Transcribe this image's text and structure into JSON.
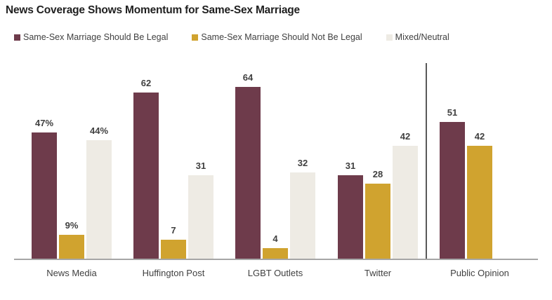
{
  "title": "News Coverage Shows Momentum for Same-Sex Marriage",
  "colors": {
    "legal_bar": "#6E3B4B",
    "not_legal_bar": "#D0A32F",
    "mixed_bar": "#EEEBE4",
    "axis_line": "#A6A6A6",
    "divider_line": "#595959",
    "label_text": "#404040",
    "title_text": "#1F1F1F"
  },
  "legend": {
    "items": [
      {
        "label": "Same-Sex Marriage Should Be Legal",
        "color": "#6E3B4B"
      },
      {
        "label": "Same-Sex Marriage Should Not Be Legal",
        "color": "#D0A32F"
      },
      {
        "label": "Mixed/Neutral",
        "color": "#EEEBE4"
      }
    ]
  },
  "chart_data": {
    "type": "bar",
    "title": "News Coverage Shows Momentum for Same-Sex Marriage",
    "categories": [
      "News Media",
      "Huffington Post",
      "LGBT Outlets",
      "Twitter",
      "Public Opinion"
    ],
    "series": [
      {
        "name": "Same-Sex Marriage Should Be Legal",
        "color": "#6E3B4B",
        "values": [
          47,
          62,
          64,
          31,
          51
        ],
        "labels": [
          "47%",
          "62",
          "64",
          "31",
          "51"
        ]
      },
      {
        "name": "Same-Sex Marriage Should Not Be Legal",
        "color": "#D0A32F",
        "values": [
          9,
          7,
          4,
          28,
          42
        ],
        "labels": [
          "9%",
          "7",
          "4",
          "28",
          "42"
        ]
      },
      {
        "name": "Mixed/Neutral",
        "color": "#EEEBE4",
        "values": [
          44,
          31,
          32,
          42,
          null
        ],
        "labels": [
          "44%",
          "31",
          "32",
          "42",
          ""
        ]
      }
    ],
    "ylim": [
      0,
      73
    ],
    "xlabel": "",
    "ylabel": "",
    "grid": false,
    "value_labels": "above bars; percent sign only on first category group",
    "legend_position": "top",
    "annotations": [
      "vertical divider line separates Public Opinion from news coverage categories"
    ]
  }
}
